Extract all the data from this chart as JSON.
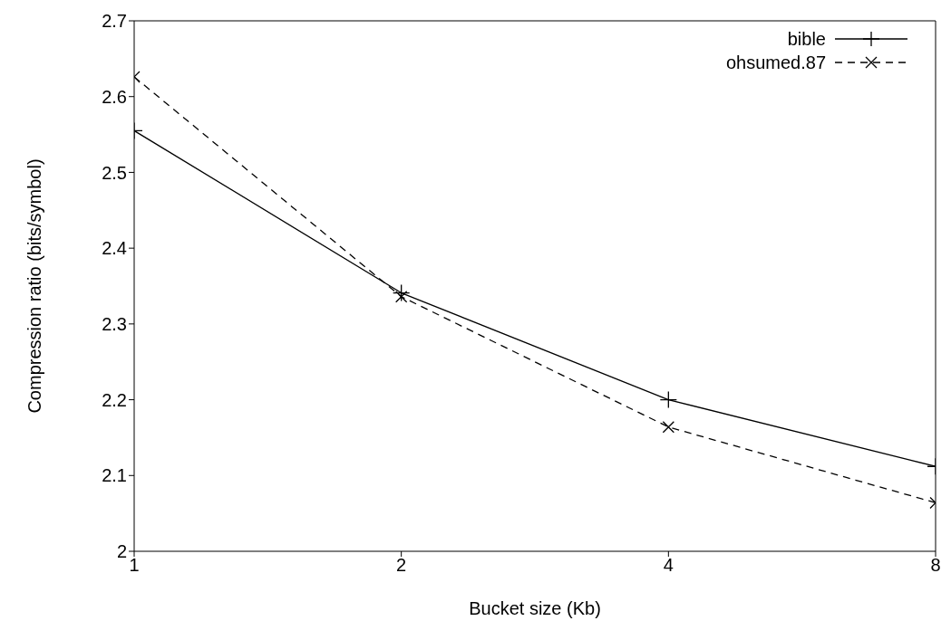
{
  "chart_data": {
    "type": "line",
    "xlabel": "Bucket size (Kb)",
    "ylabel": "Compression ratio (bits/symbol)",
    "x": [
      1,
      2,
      4,
      8
    ],
    "log": "x",
    "xlim": [
      1,
      8
    ],
    "xticks": [
      1,
      2,
      4,
      8
    ],
    "ylim": [
      2,
      2.7
    ],
    "yticks": [
      2,
      2.1,
      2.2,
      2.3,
      2.4,
      2.5,
      2.6,
      2.7
    ],
    "legend": "top right",
    "grid": false,
    "series": [
      {
        "name": "bible",
        "color": "#000000",
        "values": [
          2.555,
          2.341,
          2.2,
          2.112
        ],
        "marker": "plus",
        "line_style": "solid"
      },
      {
        "name": "ohsumed.87",
        "color": "#000000",
        "values": [
          2.626,
          2.336,
          2.164,
          2.064
        ],
        "marker": "cross",
        "line_style": "dashed"
      }
    ]
  }
}
